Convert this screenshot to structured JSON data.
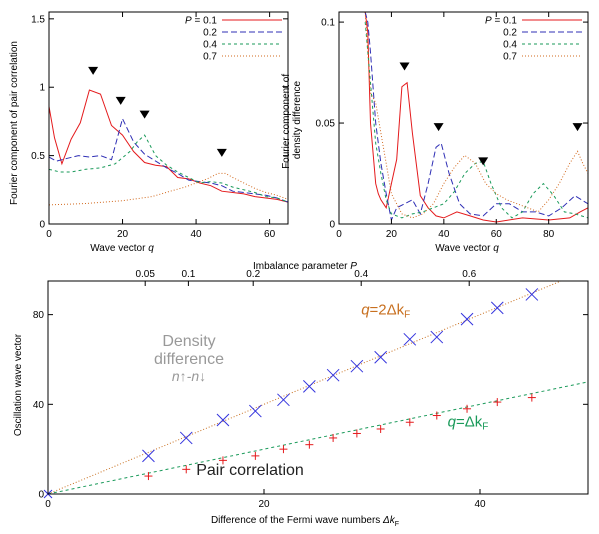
{
  "chart_data": [
    {
      "type": "line",
      "ylabel_lines": [
        "Fourier component of pair correlation"
      ],
      "xlabel_text": "Wave vector ",
      "xlabel_var": "q",
      "xlim": [
        0,
        65
      ],
      "ylim": [
        0,
        1.55
      ],
      "xticks": [
        0,
        20,
        40,
        60
      ],
      "yticks": [
        0,
        0.5,
        1,
        1.5
      ],
      "ytick_labels": [
        "0",
        "0.5",
        "1",
        "1.5"
      ],
      "legend_var": "P",
      "legend_first_prefix": " = ",
      "markers_x": [
        12,
        19.5,
        26,
        47
      ],
      "markers_y": [
        1.12,
        0.9,
        0.8,
        0.52
      ],
      "series": [
        {
          "name": "0.1",
          "color": "#e41a1c",
          "dash": "",
          "x": [
            0,
            1.5,
            3.5,
            6,
            8.5,
            11,
            14,
            17,
            20,
            23,
            26,
            29,
            32,
            35,
            38,
            41,
            44,
            47,
            50,
            53,
            56,
            59,
            62,
            65
          ],
          "y": [
            0.86,
            0.63,
            0.44,
            0.62,
            0.74,
            0.98,
            0.95,
            0.72,
            0.65,
            0.53,
            0.45,
            0.43,
            0.42,
            0.34,
            0.33,
            0.3,
            0.28,
            0.24,
            0.23,
            0.22,
            0.2,
            0.19,
            0.18,
            0.16
          ]
        },
        {
          "name": "0.2",
          "color": "#2f2fb5",
          "dash": "6,3",
          "x": [
            0,
            2,
            5,
            8,
            11,
            14,
            17,
            20,
            23,
            26,
            29,
            32,
            35,
            38,
            41,
            44,
            47,
            50,
            53,
            56,
            59,
            62,
            65
          ],
          "y": [
            0.49,
            0.46,
            0.48,
            0.5,
            0.49,
            0.5,
            0.47,
            0.77,
            0.6,
            0.51,
            0.46,
            0.41,
            0.37,
            0.32,
            0.31,
            0.3,
            0.28,
            0.24,
            0.23,
            0.22,
            0.21,
            0.19,
            0.16
          ]
        },
        {
          "name": "0.4",
          "color": "#1a9a5a",
          "dash": "3,3",
          "x": [
            0,
            3,
            6,
            10,
            14,
            18,
            22,
            24,
            26,
            29,
            32,
            35,
            38,
            41,
            44,
            47,
            50,
            53,
            56,
            59,
            62,
            65
          ],
          "y": [
            0.4,
            0.38,
            0.38,
            0.4,
            0.41,
            0.44,
            0.53,
            0.6,
            0.65,
            0.5,
            0.43,
            0.38,
            0.34,
            0.3,
            0.31,
            0.3,
            0.27,
            0.25,
            0.23,
            0.2,
            0.19,
            0.16
          ]
        },
        {
          "name": "0.7",
          "color": "#d2691e",
          "dash": "1,2",
          "x": [
            0,
            10,
            20,
            28,
            33,
            37,
            40,
            43,
            46,
            48,
            50,
            53,
            56,
            59,
            62,
            65
          ],
          "y": [
            0.14,
            0.15,
            0.17,
            0.2,
            0.24,
            0.27,
            0.3,
            0.33,
            0.37,
            0.37,
            0.34,
            0.3,
            0.26,
            0.23,
            0.21,
            0.18
          ]
        }
      ]
    },
    {
      "type": "line",
      "ylabel_lines": [
        "Fourier component of",
        "density difference"
      ],
      "xlabel_text": "Wave vector ",
      "xlabel_var": "q",
      "xlim": [
        0,
        95
      ],
      "ylim": [
        0,
        0.105
      ],
      "xticks": [
        0,
        20,
        40,
        60,
        80
      ],
      "yticks": [
        0,
        0.05,
        0.1
      ],
      "ytick_labels": [
        "0",
        "0.05",
        "0.1"
      ],
      "legend_var": "P",
      "legend_first_prefix": " = ",
      "markers_x": [
        25,
        38,
        55,
        91
      ],
      "markers_y": [
        0.078,
        0.048,
        0.031,
        0.048
      ],
      "series": [
        {
          "name": "0.1",
          "color": "#e41a1c",
          "dash": "",
          "x": [
            10,
            11,
            12,
            14,
            15,
            16,
            18,
            20,
            22,
            24,
            26,
            28,
            31,
            34,
            37,
            40,
            45,
            50,
            55,
            60,
            70,
            80,
            88,
            92,
            95
          ],
          "y": [
            0.105,
            0.095,
            0.05,
            0.02,
            0.015,
            0.012,
            0.008,
            0.02,
            0.032,
            0.068,
            0.07,
            0.045,
            0.014,
            0.008,
            0.004,
            0.003,
            0.006,
            0.004,
            0.002,
            0.001,
            0.003,
            0.002,
            0.003,
            0.006,
            0.008
          ]
        },
        {
          "name": "0.2",
          "color": "#2f2fb5",
          "dash": "6,3",
          "x": [
            10,
            11,
            12,
            14,
            16,
            18,
            20,
            22,
            25,
            28,
            31,
            34,
            37,
            39,
            42,
            46,
            50,
            55,
            60,
            65,
            70,
            75,
            80,
            85,
            90,
            95
          ],
          "y": [
            0.105,
            0.1,
            0.085,
            0.05,
            0.03,
            0.015,
            0.002,
            0.008,
            0.01,
            0.012,
            0.005,
            0.02,
            0.038,
            0.04,
            0.025,
            0.01,
            0.005,
            0.004,
            0.01,
            0.01,
            0.006,
            0.006,
            0.004,
            0.008,
            0.014,
            0.01
          ]
        },
        {
          "name": "0.4",
          "color": "#1a9a5a",
          "dash": "3,3",
          "x": [
            10,
            12,
            14,
            16,
            18,
            20,
            24,
            28,
            32,
            36,
            40,
            44,
            48,
            52,
            55,
            58,
            62,
            66,
            70,
            74,
            78,
            82,
            86,
            90,
            95
          ],
          "y": [
            0.1,
            0.07,
            0.04,
            0.025,
            0.012,
            0.005,
            0.003,
            0.005,
            0.006,
            0.008,
            0.01,
            0.016,
            0.025,
            0.03,
            0.031,
            0.02,
            0.008,
            0.003,
            0.006,
            0.015,
            0.02,
            0.014,
            0.006,
            0.005,
            0.003
          ]
        },
        {
          "name": "0.7",
          "color": "#d2691e",
          "dash": "1,2",
          "x": [
            10,
            12,
            14,
            16,
            18,
            20,
            24,
            28,
            32,
            36,
            40,
            44,
            48,
            52,
            56,
            60,
            64,
            68,
            72,
            76,
            80,
            84,
            88,
            91,
            93,
            95
          ],
          "y": [
            0.105,
            0.065,
            0.06,
            0.045,
            0.03,
            0.015,
            0.005,
            0.003,
            0.005,
            0.01,
            0.02,
            0.028,
            0.034,
            0.03,
            0.02,
            0.015,
            0.012,
            0.01,
            0.008,
            0.006,
            0.012,
            0.02,
            0.03,
            0.036,
            0.03,
            0.025
          ]
        }
      ]
    },
    {
      "type": "scatter",
      "ylabel": "Oscillation wave vector",
      "xlabel_text": "Difference of the Fermi wave numbers ",
      "xlabel_var": "Δk",
      "xlabel_sub": "F",
      "top_axis_text": "Imbalance parameter ",
      "top_axis_var": "P",
      "xlim": [
        0,
        50
      ],
      "ylim": [
        0,
        95
      ],
      "xticks": [
        0,
        20,
        40
      ],
      "yticks": [
        0,
        40,
        80
      ],
      "top_ticks": [
        "0.05",
        "0.1",
        "0.2",
        "0.4",
        "0.6"
      ],
      "top_tick_x": [
        9,
        13,
        19,
        29,
        39
      ],
      "lines": [
        {
          "label_var": "q",
          "label_rest": "=2Δk",
          "label_sub": "F",
          "slope": 2,
          "color": "#c87020",
          "dash": "1,2"
        },
        {
          "label_var": "q",
          "label_rest": "=Δk",
          "label_sub": "F",
          "slope": 1,
          "color": "#1a9a5a",
          "dash": "3,3"
        }
      ],
      "series": [
        {
          "name": "Density difference",
          "marker": "x",
          "color": "#3333dd",
          "x": [
            9.3,
            12.8,
            16.2,
            19.2,
            21.8,
            24.2,
            26.4,
            28.6,
            30.8,
            33.5,
            36.0,
            38.8,
            41.6,
            44.8
          ],
          "y": [
            17,
            25,
            33,
            37,
            42,
            48,
            53,
            57,
            61,
            69,
            70,
            78,
            83,
            89
          ]
        },
        {
          "name": "Pair correlation",
          "marker": "+",
          "color": "#e41a1c",
          "x": [
            9.3,
            12.8,
            16.2,
            19.2,
            21.8,
            24.2,
            26.4,
            28.6,
            30.8,
            33.5,
            36.0,
            38.8,
            41.6,
            44.8
          ],
          "y": [
            8,
            11,
            15,
            17,
            20,
            22,
            25,
            27,
            29,
            32,
            35,
            38,
            41,
            43
          ]
        }
      ],
      "annotations": {
        "density_line1": "Density",
        "density_line2": "difference",
        "density_formula": "n↑-n↓",
        "pair_label": "Pair correlation"
      }
    }
  ],
  "style": {
    "axis_color": "#000000",
    "marker_color": "#000000",
    "annotation_gray": "#999999"
  }
}
